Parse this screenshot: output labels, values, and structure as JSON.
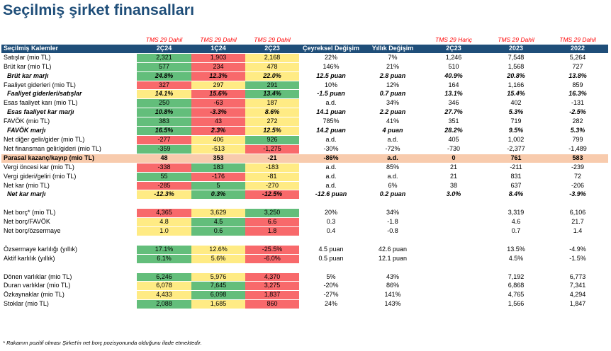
{
  "title": "Seçilmiş şirket finansalları",
  "tms_row": [
    "",
    "TMS 29 Dahil",
    "TMS 29 Dahil",
    "TMS 29 Dahil",
    "",
    "",
    "TMS 29 Hariç",
    "TMS 29 Dahil",
    "TMS 29 Dahil"
  ],
  "headers": [
    "Seçilmiş Kalemler",
    "2Ç24",
    "1Ç24",
    "2Ç23",
    "Çeyreksel Değişim",
    "Yıllık Değişim",
    "2Ç23",
    "2023",
    "2022"
  ],
  "colors": {
    "header_bg": "#1f4e79",
    "green": "#63be7b",
    "red": "#f8696b",
    "yellow": "#ffeb84",
    "highlight": "#f8cbad",
    "tms_text": "#ff0000"
  },
  "rows": [
    {
      "label": "Satışlar (mio TL)",
      "style": "normal",
      "cells": [
        "2,321",
        "1,903",
        "2,168",
        "22%",
        "7%",
        "1,246",
        "7,548",
        "5,264"
      ],
      "colors": [
        "g",
        "r",
        "y"
      ]
    },
    {
      "label": "Brüt kar (mio TL)",
      "style": "normal",
      "cells": [
        "577",
        "234",
        "478",
        "146%",
        "21%",
        "510",
        "1,568",
        "727"
      ],
      "colors": [
        "g",
        "r",
        "y"
      ]
    },
    {
      "label": "Brüt kar marjı",
      "style": "bi",
      "cells": [
        "24.8%",
        "12.3%",
        "22.0%",
        "12.5 puan",
        "2.8 puan",
        "40.9%",
        "20.8%",
        "13.8%"
      ],
      "colors": [
        "g",
        "r",
        "y"
      ]
    },
    {
      "label": "Faaliyet giderleri (mio TL)",
      "style": "normal",
      "cells": [
        "327",
        "297",
        "291",
        "10%",
        "12%",
        "164",
        "1,166",
        "859"
      ],
      "colors": [
        "r",
        "y",
        "g"
      ]
    },
    {
      "label": "Faaliyet giderleri/satışlar",
      "style": "bi",
      "cells": [
        "14.1%",
        "15.6%",
        "13.4%",
        "-1.5 puan",
        "0.7 puan",
        "13.1%",
        "15.4%",
        "16.3%"
      ],
      "colors": [
        "y",
        "r",
        "g"
      ]
    },
    {
      "label": "Esas faaliyet karı (mio TL)",
      "style": "normal",
      "cells": [
        "250",
        "-63",
        "187",
        "a.d.",
        "34%",
        "346",
        "402",
        "-131"
      ],
      "colors": [
        "g",
        "r",
        "y"
      ]
    },
    {
      "label": "Esas faaliyet kar marjı",
      "style": "bi",
      "cells": [
        "10.8%",
        "-3.3%",
        "8.6%",
        "14.1 puan",
        "2.2 puan",
        "27.7%",
        "5.3%",
        "-2.5%"
      ],
      "colors": [
        "g",
        "r",
        "y"
      ]
    },
    {
      "label": "FAVÖK (mio TL)",
      "style": "normal",
      "cells": [
        "383",
        "43",
        "272",
        "785%",
        "41%",
        "351",
        "719",
        "282"
      ],
      "colors": [
        "g",
        "r",
        "y"
      ]
    },
    {
      "label": "FAVÖK marjı",
      "style": "bi",
      "cells": [
        "16.5%",
        "2.3%",
        "12.5%",
        "14.2 puan",
        "4 puan",
        "28.2%",
        "9.5%",
        "5.3%"
      ],
      "colors": [
        "g",
        "r",
        "y"
      ]
    },
    {
      "label": "Net diğer gelir/gider (mio TL)",
      "style": "normal",
      "cells": [
        "-277",
        "406",
        "926",
        "a.d.",
        "a.d.",
        "405",
        "1,002",
        "799"
      ],
      "colors": [
        "r",
        "y",
        "g"
      ]
    },
    {
      "label": "Net finansman gelir/gideri (mio TL)",
      "style": "normal",
      "cells": [
        "-359",
        "-513",
        "-1,275",
        "-30%",
        "-72%",
        "-730",
        "-2,377",
        "-1,489"
      ],
      "colors": [
        "g",
        "y",
        "r"
      ]
    },
    {
      "label": "Parasal kazanç/kayıp (mio TL)",
      "style": "hl",
      "cells": [
        "48",
        "353",
        "-21",
        "-86%",
        "a.d.",
        "0",
        "761",
        "583"
      ],
      "colors": [
        "",
        "",
        ""
      ]
    },
    {
      "label": "Vergi öncesi kar (mio TL)",
      "style": "normal",
      "cells": [
        "-338",
        "183",
        "-183",
        "a.d.",
        "85%",
        "21",
        "-211",
        "-239"
      ],
      "colors": [
        "r",
        "g",
        "y"
      ]
    },
    {
      "label": "Vergi gideri/geliri (mio TL)",
      "style": "normal",
      "cells": [
        "55",
        "-176",
        "-81",
        "a.d.",
        "a.d.",
        "21",
        "831",
        "72"
      ],
      "colors": [
        "g",
        "r",
        "y"
      ]
    },
    {
      "label": "Net kar (mio TL)",
      "style": "normal",
      "cells": [
        "-285",
        "5",
        "-270",
        "a.d.",
        "6%",
        "38",
        "637",
        "-206"
      ],
      "colors": [
        "r",
        "g",
        "y"
      ]
    },
    {
      "label": "Net kar marjı",
      "style": "bi",
      "cells": [
        "-12.3%",
        "0.3%",
        "-12.5%",
        "-12.6 puan",
        "0.2 puan",
        "3.0%",
        "8.4%",
        "-3.9%"
      ],
      "colors": [
        "y",
        "g",
        "r"
      ]
    },
    {
      "label": "",
      "style": "gap",
      "cells": [
        "",
        "",
        "",
        "",
        "",
        "",
        "",
        ""
      ],
      "colors": [
        "",
        "",
        ""
      ]
    },
    {
      "label": "Net borç* (mio TL)",
      "style": "normal",
      "cells": [
        "4,365",
        "3,629",
        "3,250",
        "20%",
        "34%",
        "",
        "3,319",
        "6,106"
      ],
      "colors": [
        "r",
        "y",
        "g"
      ]
    },
    {
      "label": "Net borç/FAVÖK",
      "style": "normal",
      "cells": [
        "4.8",
        "4.5",
        "6.6",
        "0.3",
        "-1.8",
        "",
        "4.6",
        "21.7"
      ],
      "colors": [
        "y",
        "g",
        "r"
      ]
    },
    {
      "label": "Net borç/özsermaye",
      "style": "normal",
      "cells": [
        "1.0",
        "0.6",
        "1.8",
        "0.4",
        "-0.8",
        "",
        "0.7",
        "1.4"
      ],
      "colors": [
        "y",
        "g",
        "r"
      ]
    },
    {
      "label": "",
      "style": "gap",
      "cells": [
        "",
        "",
        "",
        "",
        "",
        "",
        "",
        ""
      ],
      "colors": [
        "",
        "",
        ""
      ]
    },
    {
      "label": "Özsermaye karlılığı (yıllık)",
      "style": "normal",
      "cells": [
        "17.1%",
        "12.6%",
        "-25.5%",
        "4.5 puan",
        "42.6 puan",
        "",
        "13.5%",
        "-4.9%"
      ],
      "colors": [
        "g",
        "y",
        "r"
      ]
    },
    {
      "label": "Aktif karlılık (yıllık)",
      "style": "normal",
      "cells": [
        "6.1%",
        "5.6%",
        "-6.0%",
        "0.5 puan",
        "12.1 puan",
        "",
        "4.5%",
        "-1.5%"
      ],
      "colors": [
        "g",
        "y",
        "r"
      ]
    },
    {
      "label": "",
      "style": "gap",
      "cells": [
        "",
        "",
        "",
        "",
        "",
        "",
        "",
        ""
      ],
      "colors": [
        "",
        "",
        ""
      ]
    },
    {
      "label": "Dönen varlıklar (mio TL)",
      "style": "normal",
      "cells": [
        "6,246",
        "5,976",
        "4,370",
        "5%",
        "43%",
        "",
        "7,192",
        "6,773"
      ],
      "colors": [
        "g",
        "y",
        "r"
      ]
    },
    {
      "label": "Duran varlıklar (mio TL)",
      "style": "normal",
      "cells": [
        "6,078",
        "7,645",
        "3,275",
        "-20%",
        "86%",
        "",
        "6,868",
        "7,341"
      ],
      "colors": [
        "y",
        "g",
        "r"
      ]
    },
    {
      "label": "Özkaynaklar (mio TL)",
      "style": "normal",
      "cells": [
        "4,433",
        "6,098",
        "1,837",
        "-27%",
        "141%",
        "",
        "4,765",
        "4,294"
      ],
      "colors": [
        "y",
        "g",
        "r"
      ]
    },
    {
      "label": "Stoklar (mio TL)",
      "style": "normal",
      "cells": [
        "2,088",
        "1,685",
        "860",
        "24%",
        "143%",
        "",
        "1,566",
        "1,847"
      ],
      "colors": [
        "g",
        "y",
        "r"
      ]
    }
  ],
  "footnote": "* Rakamın pozitif olması Şirket'in net borç pozisyonunda olduğunu ifade etmektedir."
}
